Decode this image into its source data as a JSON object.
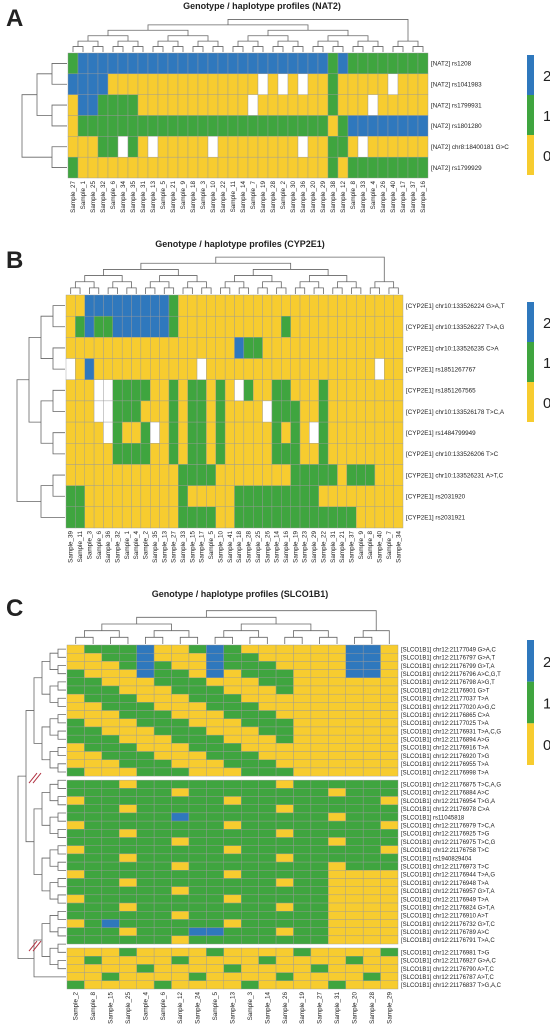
{
  "palette": {
    "v0": "#f7cc2f",
    "v1": "#3fa53f",
    "v2": "#2f78bd",
    "na": "#ffffff",
    "grid": "#9a9a9a",
    "tree": "#666666",
    "break": "#b03040"
  },
  "chart_data": [
    {
      "type": "heatmap",
      "panel": "A",
      "title": "Genotype / haplotype profiles (NAT2)",
      "rows": [
        "[NAT2] rs1208",
        "[NAT2] rs1041983",
        "[NAT2] rs1799931",
        "[NAT2] rs1801280",
        "[NAT2] chr8:18400181 G>C",
        "[NAT2] rs1799929"
      ],
      "columns": [
        "Sample_27",
        "Sample_1",
        "Sample_25",
        "Sample_32",
        "Sample_6",
        "Sample_34",
        "Sample_35",
        "Sample_31",
        "Sample_13",
        "Sample_5",
        "Sample_21",
        "Sample_9",
        "Sample_18",
        "Sample_3",
        "Sample_10",
        "Sample_22",
        "Sample_11",
        "Sample_14",
        "Sample_7",
        "Sample_19",
        "Sample_28",
        "Sample_2",
        "Sample_30",
        "Sample_36",
        "Sample_20",
        "Sample_29",
        "Sample_38",
        "Sample_12",
        "Sample_8",
        "Sample_33",
        "Sample_4",
        "Sample_26",
        "Sample_40",
        "Sample_17",
        "Sample_37",
        "Sample_16"
      ],
      "values": [
        [
          1,
          2,
          2,
          2,
          2,
          2,
          2,
          2,
          2,
          2,
          2,
          2,
          2,
          2,
          2,
          2,
          2,
          2,
          2,
          2,
          2,
          2,
          2,
          2,
          2,
          2,
          1,
          2,
          1,
          1,
          1,
          1,
          1,
          1,
          1,
          1
        ],
        [
          2,
          2,
          2,
          2,
          0,
          0,
          0,
          0,
          0,
          0,
          0,
          0,
          0,
          0,
          0,
          0,
          0,
          0,
          0,
          0,
          0,
          0,
          0,
          0,
          0,
          0,
          1,
          0,
          0,
          0,
          0,
          0,
          0,
          0,
          0,
          0
        ],
        [
          0,
          2,
          2,
          1,
          1,
          1,
          1,
          0,
          0,
          0,
          0,
          0,
          0,
          0,
          0,
          0,
          0,
          0,
          0,
          0,
          0,
          0,
          0,
          0,
          0,
          0,
          1,
          0,
          0,
          0,
          0,
          0,
          0,
          0,
          0,
          0
        ],
        [
          0,
          1,
          1,
          1,
          1,
          1,
          1,
          1,
          1,
          1,
          1,
          1,
          1,
          1,
          1,
          1,
          1,
          1,
          1,
          1,
          1,
          1,
          1,
          1,
          1,
          1,
          0,
          1,
          2,
          2,
          2,
          2,
          2,
          2,
          2,
          2
        ],
        [
          0,
          0,
          0,
          1,
          1,
          1,
          1,
          0,
          0,
          0,
          0,
          0,
          0,
          0,
          0,
          0,
          0,
          0,
          0,
          0,
          0,
          0,
          0,
          0,
          0,
          0,
          1,
          1,
          0,
          0,
          0,
          0,
          0,
          0,
          0,
          0
        ],
        [
          1,
          0,
          0,
          0,
          0,
          0,
          0,
          0,
          0,
          0,
          0,
          0,
          0,
          0,
          0,
          0,
          0,
          0,
          0,
          0,
          0,
          0,
          0,
          0,
          0,
          0,
          1,
          0,
          1,
          1,
          1,
          1,
          1,
          1,
          1,
          1
        ]
      ],
      "missing": [
        [
          1,
          19
        ],
        [
          1,
          21
        ],
        [
          1,
          23
        ],
        [
          1,
          32
        ],
        [
          2,
          18
        ],
        [
          2,
          30
        ],
        [
          4,
          5
        ],
        [
          4,
          8
        ],
        [
          4,
          14
        ],
        [
          4,
          23
        ],
        [
          4,
          29
        ]
      ],
      "legend": [
        2,
        1,
        0
      ]
    },
    {
      "type": "heatmap",
      "panel": "B",
      "title": "Genotype / haplotype profiles (CYP2E1)",
      "rows": [
        "[CYP2E1] chr10:133526224 G>A,T",
        "[CYP2E1] chr10:133526227 T>A,G",
        "[CYP2E1] chr10:133526235 C>A",
        "[CYP2E1] rs1851267767",
        "[CYP2E1] rs1851267565",
        "[CYP2E1] chr10:133526178 T>C,A",
        "[CYP2E1] rs1484799949",
        "[CYP2E1] chr10:133526206 T>C",
        "[CYP2E1] chr10:133526231 A>T,C",
        "[CYP2E1] rs2031920",
        "[CYP2E1] rs2031921"
      ],
      "columns": [
        "Sample_39",
        "Sample_11",
        "Sample_3",
        "Sample_6",
        "Sample_36",
        "Sample_32",
        "Sample_1",
        "Sample_4",
        "Sample_2",
        "Sample_35",
        "Sample_13",
        "Sample_27",
        "Sample_33",
        "Sample_15",
        "Sample_17",
        "Sample_5",
        "Sample_10",
        "Sample_41",
        "Sample_18",
        "Sample_28",
        "Sample_25",
        "Sample_26",
        "Sample_14",
        "Sample_16",
        "Sample_19",
        "Sample_23",
        "Sample_29",
        "Sample_22",
        "Sample_31",
        "Sample_21",
        "Sample_37",
        "Sample_9",
        "Sample_8",
        "Sample_40",
        "Sample_7",
        "Sample_34"
      ],
      "values": [
        [
          0,
          0,
          2,
          2,
          2,
          2,
          2,
          2,
          2,
          2,
          2,
          1,
          0,
          0,
          0,
          0,
          0,
          0,
          0,
          0,
          0,
          0,
          0,
          0,
          0,
          0,
          0,
          0,
          0,
          0,
          0,
          0,
          0,
          0,
          0,
          0
        ],
        [
          0,
          1,
          2,
          1,
          1,
          2,
          2,
          2,
          2,
          2,
          2,
          1,
          0,
          0,
          0,
          0,
          0,
          0,
          0,
          0,
          0,
          0,
          0,
          1,
          0,
          0,
          0,
          0,
          0,
          0,
          0,
          0,
          0,
          0,
          0,
          0
        ],
        [
          0,
          0,
          0,
          0,
          0,
          0,
          0,
          0,
          0,
          0,
          0,
          0,
          0,
          0,
          0,
          0,
          0,
          0,
          2,
          1,
          1,
          0,
          0,
          0,
          0,
          0,
          0,
          0,
          0,
          0,
          0,
          0,
          0,
          0,
          0,
          0
        ],
        [
          0,
          0,
          2,
          0,
          0,
          0,
          0,
          0,
          0,
          0,
          0,
          0,
          0,
          0,
          0,
          0,
          0,
          0,
          0,
          0,
          0,
          0,
          0,
          0,
          0,
          0,
          0,
          0,
          0,
          0,
          0,
          0,
          0,
          0,
          0,
          0
        ],
        [
          0,
          0,
          0,
          0,
          0,
          1,
          1,
          1,
          1,
          0,
          0,
          1,
          0,
          1,
          1,
          0,
          1,
          0,
          1,
          1,
          0,
          0,
          1,
          1,
          0,
          0,
          0,
          1,
          0,
          0,
          0,
          0,
          0,
          0,
          0,
          0
        ],
        [
          0,
          0,
          0,
          0,
          0,
          1,
          1,
          1,
          0,
          0,
          0,
          1,
          0,
          1,
          1,
          0,
          1,
          0,
          0,
          0,
          0,
          0,
          1,
          1,
          1,
          0,
          0,
          1,
          0,
          0,
          0,
          0,
          0,
          0,
          0,
          0
        ],
        [
          0,
          0,
          0,
          0,
          0,
          1,
          0,
          0,
          1,
          0,
          0,
          1,
          0,
          1,
          1,
          0,
          1,
          0,
          0,
          0,
          0,
          0,
          1,
          0,
          1,
          0,
          0,
          1,
          0,
          0,
          0,
          0,
          0,
          0,
          0,
          0
        ],
        [
          0,
          0,
          0,
          0,
          0,
          1,
          1,
          1,
          1,
          0,
          0,
          1,
          0,
          1,
          1,
          0,
          1,
          0,
          0,
          0,
          0,
          0,
          1,
          1,
          1,
          0,
          0,
          1,
          0,
          0,
          0,
          0,
          0,
          0,
          0,
          0
        ],
        [
          0,
          0,
          0,
          0,
          0,
          0,
          0,
          0,
          0,
          0,
          0,
          0,
          1,
          1,
          1,
          1,
          0,
          0,
          0,
          0,
          0,
          0,
          0,
          0,
          1,
          1,
          1,
          1,
          1,
          0,
          1,
          1,
          1,
          0,
          0,
          0
        ],
        [
          1,
          1,
          0,
          0,
          0,
          0,
          0,
          0,
          0,
          0,
          0,
          0,
          1,
          0,
          0,
          0,
          0,
          0,
          1,
          1,
          1,
          1,
          1,
          1,
          1,
          1,
          1,
          0,
          0,
          0,
          0,
          0,
          0,
          0,
          0,
          0
        ],
        [
          1,
          1,
          0,
          0,
          0,
          0,
          0,
          0,
          0,
          0,
          0,
          0,
          1,
          1,
          1,
          1,
          0,
          0,
          1,
          1,
          1,
          1,
          1,
          1,
          1,
          1,
          1,
          1,
          1,
          1,
          1,
          0,
          0,
          0,
          0,
          0
        ]
      ],
      "missing": [
        [
          3,
          0
        ],
        [
          3,
          33
        ],
        [
          4,
          3
        ],
        [
          4,
          4
        ],
        [
          5,
          3
        ],
        [
          5,
          4
        ],
        [
          6,
          4
        ],
        [
          6,
          9
        ],
        [
          3,
          14
        ],
        [
          4,
          18
        ],
        [
          5,
          21
        ],
        [
          6,
          26
        ]
      ],
      "legend": [
        2,
        1,
        0
      ]
    },
    {
      "type": "heatmap",
      "panel": "C",
      "title": "Genotype / haplotype profiles (SLCO1B1)",
      "rows": [
        "[SLCO1B1] chr12:21177049 G>A,C",
        "[SLCO1B1] chr12:21176797 G>A,T",
        "[SLCO1B1] chr12:21176799 G>T,A",
        "[SLCO1B1] chr12:21176796 A>C,G,T",
        "[SLCO1B1] chr12:21176798 A>G,T",
        "[SLCO1B1] chr12:21176901 G>T",
        "[SLCO1B1] chr12:21177037 T>A",
        "[SLCO1B1] chr12:21177020 A>G,C",
        "[SLCO1B1] chr12:21176865 C>A",
        "[SLCO1B1] chr12:21177025 T>A",
        "[SLCO1B1] chr12:21176931 T>A,C,G",
        "[SLCO1B1] chr12:21176894 A>G",
        "[SLCO1B1] chr12:21176916 T>A",
        "[SLCO1B1] chr12:21176920 T>G",
        "[SLCO1B1] chr12:21176955 T>A",
        "[SLCO1B1] chr12:21176998 T>A",
        "[SLCO1B1] chr12:21176875 T>C,A,G",
        "[SLCO1B1] chr12:21176884 A>C",
        "[SLCO1B1] chr12:21176954 T>G,A",
        "[SLCO1B1] chr12:21176978 C>A",
        "[SLCO1B1] rs11045818",
        "[SLCO1B1] chr12:21176979 T>C,A",
        "[SLCO1B1] chr12:21176925 T>G",
        "[SLCO1B1] chr12:21176975 T>C,G",
        "[SLCO1B1] chr12:21176758 T>C",
        "[SLCO1B1] rs1940829404",
        "[SLCO1B1] chr12:21176973 T>C",
        "[SLCO1B1] chr12:21176944 T>A,G",
        "[SLCO1B1] chr12:21176948 T>A",
        "[SLCO1B1] chr12:21176957 G>T,A",
        "[SLCO1B1] chr12:21176949 T>A",
        "[SLCO1B1] chr12:21176824 G>T,A",
        "[SLCO1B1] chr12:21176910 A>T",
        "[SLCO1B1] chr12:21176732 G>T,C",
        "[SLCO1B1] chr12:21176789 A>C",
        "[SLCO1B1] chr12:21176791 T>A,C",
        "[SLCO1B1] chr12:21176981 T>G",
        "[SLCO1B1] chr12:21176927 G>A,C",
        "[SLCO1B1] chr12:21176790 A>T,C",
        "[SLCO1B1] chr12:21176787 A>T,C",
        "[SLCO1B1] chr12:21176837 T>G,A,C"
      ],
      "columns": [
        "Sample_2",
        "Sample_8",
        "Sample_15",
        "Sample_25",
        "Sample_4",
        "Sample_6",
        "Sample_12",
        "Sample_24",
        "Sample_5",
        "Sample_13",
        "Sample_3",
        "Sample_14",
        "Sample_26",
        "Sample_19",
        "Sample_27",
        "Sample_31",
        "Sample_20",
        "Sample_28",
        "Sample_29"
      ],
      "values": "generated",
      "legend": [
        2,
        1,
        0
      ]
    }
  ],
  "panels": [
    {
      "letter": "A"
    },
    {
      "letter": "B"
    },
    {
      "letter": "C"
    }
  ]
}
